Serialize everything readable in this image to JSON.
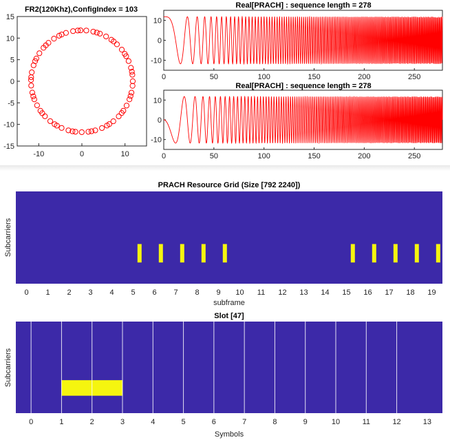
{
  "chart_data": [
    {
      "type": "scatter",
      "title": "FR2(120Khz),ConfigIndex = 103",
      "xlim": [
        -15,
        15
      ],
      "ylim": [
        -15,
        15
      ],
      "xticks": [
        "-10",
        "0",
        "10"
      ],
      "yticks": [
        "15",
        "10",
        "5",
        "0",
        "-5",
        "-10",
        "-15"
      ],
      "radius": 11.8,
      "num_points": 64,
      "marker": "circle",
      "color": "#ff0000"
    },
    {
      "type": "line",
      "title": "Real[PRACH] : sequence length = 278",
      "xlim": [
        0,
        278
      ],
      "ylim": [
        -15,
        15
      ],
      "xticks": [
        "0",
        "50",
        "100",
        "150",
        "200",
        "250"
      ],
      "yticks": [
        "10",
        "0",
        "-10"
      ],
      "amplitude": 11.8,
      "color": "#ff0000"
    },
    {
      "type": "line",
      "title": "Real[PRACH] : sequence length = 278",
      "xlim": [
        0,
        278
      ],
      "ylim": [
        -15,
        15
      ],
      "xticks": [
        "0",
        "50",
        "100",
        "150",
        "200",
        "250"
      ],
      "yticks": [
        "10",
        "0",
        "-10"
      ],
      "amplitude": 11.8,
      "color": "#ff0000"
    },
    {
      "type": "heatmap",
      "title": "PRACH Resource Grid (Size [792 2240])",
      "xlabel": "subframe",
      "ylabel": "Subcarriers",
      "xticks": [
        "0",
        "1",
        "2",
        "3",
        "4",
        "5",
        "6",
        "7",
        "8",
        "9",
        "10",
        "11",
        "12",
        "13",
        "14",
        "15",
        "16",
        "17",
        "18",
        "19"
      ],
      "background_color": "#3c29a8",
      "active_color": "#f5f50f",
      "active_subframes": [
        5.5,
        6.5,
        7.5,
        8.5,
        9.5,
        15.5,
        16.5,
        17.5,
        18.5,
        19.5
      ],
      "active_band_fraction": [
        0.57,
        0.77
      ]
    },
    {
      "type": "heatmap",
      "title": "Slot [47]",
      "xlabel": "Symbols",
      "ylabel": "Subcarriers",
      "xticks": [
        "0",
        "1",
        "2",
        "3",
        "4",
        "5",
        "6",
        "7",
        "8",
        "9",
        "10",
        "11",
        "12",
        "13"
      ],
      "background_color": "#3c29a8",
      "active_color": "#f5f50f",
      "gridline_color": "#ffffff",
      "active_symbols": [
        2,
        3
      ],
      "active_band_fraction": [
        0.64,
        0.81
      ]
    }
  ]
}
